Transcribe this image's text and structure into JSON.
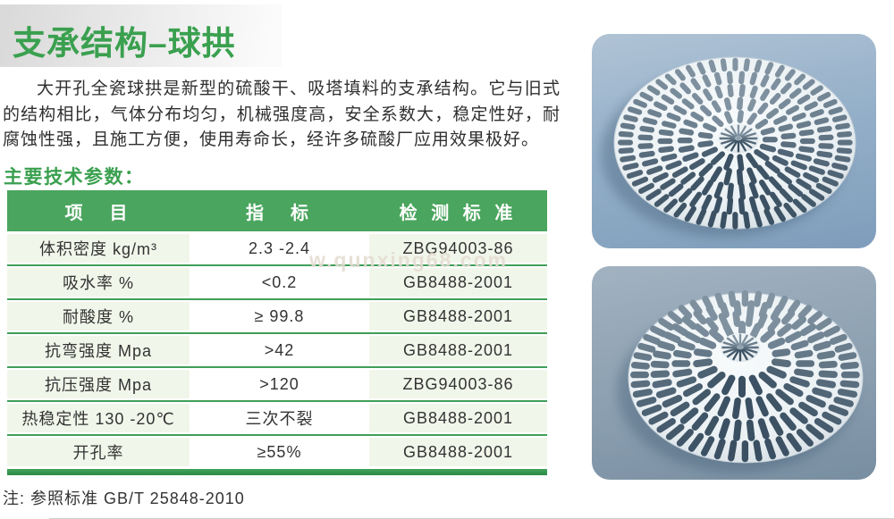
{
  "page": {
    "title": "支承结构–球拱",
    "intro": "大开孔全瓷球拱是新型的硫酸干、吸塔填料的支承结构。它与旧式的结构相比，气体分布均匀，机械强度高，安全系数大，稳定性好，耐腐蚀性强，且施工方便，使用寿命长，经许多硫酸厂应用效果极好。",
    "section_heading": "主要技术参数：",
    "watermark": "w.qunxing68.com",
    "note": "注: 参照标准 GB/T 25848-2010"
  },
  "table": {
    "headers": [
      "项　目",
      "指　标",
      "检 测 标 准"
    ],
    "rows": [
      [
        "体积密度 kg/m³",
        "2.3 -2.4",
        "ZBG94003-86"
      ],
      [
        "吸水率 %",
        "<0.2",
        "GB8488-2001"
      ],
      [
        "耐酸度 %",
        "≥ 99.8",
        "GB8488-2001"
      ],
      [
        "抗弯强度 Mpa",
        ">42",
        "GB8488-2001"
      ],
      [
        "抗压强度 Mpa",
        ">120",
        "ZBG94003-86"
      ],
      [
        "热稳定性 130 -20℃",
        "三次不裂",
        "GB8488-2001"
      ],
      [
        "开孔率",
        "≥55%",
        "GB8488-2001"
      ]
    ]
  },
  "theme": {
    "title_green": "#3aa04f",
    "table_header_green": "#4aa55e",
    "divider_green": "#3f9f58",
    "row_tint": "#f1f6ea",
    "photo_top_bg": "#9bb3c9",
    "photo_bottom_bg": "#8da1b2",
    "ceramic_white": "#eef2f5"
  }
}
